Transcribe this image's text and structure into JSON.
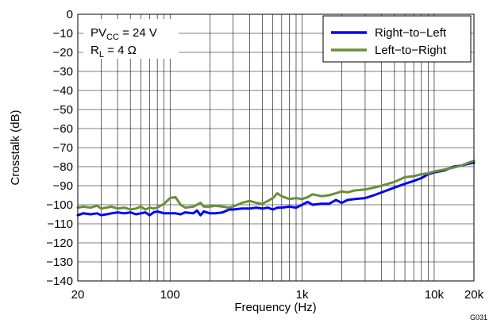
{
  "chart_data": {
    "type": "line",
    "x_scale": "log",
    "xlim": [
      20,
      20000
    ],
    "ylim": [
      -140,
      0
    ],
    "xlabel": "Frequency (Hz)",
    "ylabel": "Crosstalk (dB)",
    "x_ticks": [
      {
        "value": 20,
        "label": "20"
      },
      {
        "value": 100,
        "label": "100"
      },
      {
        "value": 1000,
        "label": "1k"
      },
      {
        "value": 10000,
        "label": "10k"
      },
      {
        "value": 20000,
        "label": "20k"
      }
    ],
    "y_ticks": [
      0,
      -10,
      -20,
      -30,
      -40,
      -50,
      -60,
      -70,
      -80,
      -90,
      -100,
      -110,
      -120,
      -130,
      -140
    ],
    "y_tick_labels": [
      "0",
      "−10",
      "−20",
      "−30",
      "−40",
      "−50",
      "−60",
      "−70",
      "−80",
      "−90",
      "−100",
      "−110",
      "−120",
      "−130",
      "−140"
    ],
    "grid": true,
    "legend_position": "top-right",
    "annotations": [
      {
        "main": "PV",
        "sub": "CC",
        "rest": " = 24 V"
      },
      {
        "main": "R",
        "sub": "L",
        "rest": " = 4 Ω"
      }
    ],
    "figure_id": "G031",
    "series": [
      {
        "name": "Right−to−Left",
        "color": "#0000ff",
        "x": [
          20,
          22,
          25,
          28,
          30,
          33,
          36,
          40,
          45,
          50,
          55,
          60,
          65,
          70,
          75,
          80,
          90,
          100,
          110,
          120,
          130,
          150,
          160,
          170,
          180,
          200,
          220,
          250,
          280,
          300,
          350,
          400,
          450,
          500,
          550,
          600,
          650,
          700,
          800,
          900,
          1000,
          1100,
          1200,
          1400,
          1600,
          1800,
          2000,
          2200,
          2500,
          3000,
          3500,
          4000,
          5000,
          6000,
          7000,
          8000,
          9000,
          10000,
          12000,
          14000,
          16000,
          18000,
          20000
        ],
        "y": [
          -105.5,
          -104.5,
          -105,
          -104.5,
          -105.5,
          -105,
          -104.5,
          -104,
          -104.5,
          -104,
          -105,
          -104.5,
          -104,
          -105.5,
          -104,
          -103.5,
          -104.5,
          -104.5,
          -104.5,
          -105,
          -104,
          -104.5,
          -103,
          -105.5,
          -103.5,
          -104.5,
          -104.5,
          -104,
          -102.5,
          -102.5,
          -102,
          -102,
          -101.5,
          -102,
          -101.5,
          -102.5,
          -101.5,
          -101.5,
          -101,
          -101.5,
          -100,
          -98.5,
          -100,
          -99.5,
          -99.5,
          -97.5,
          -99,
          -97.5,
          -97,
          -96.5,
          -95,
          -93.5,
          -91,
          -89,
          -87.5,
          -86,
          -84,
          -83,
          -82,
          -80,
          -79.5,
          -78.5,
          -78
        ]
      },
      {
        "name": "Left−to−Right",
        "color": "#6b8e3a",
        "x": [
          20,
          22,
          25,
          28,
          30,
          33,
          36,
          40,
          45,
          50,
          55,
          60,
          65,
          70,
          75,
          80,
          90,
          100,
          110,
          120,
          130,
          150,
          160,
          170,
          180,
          200,
          220,
          250,
          280,
          300,
          350,
          400,
          450,
          500,
          550,
          600,
          650,
          700,
          800,
          900,
          1000,
          1100,
          1200,
          1400,
          1600,
          1800,
          2000,
          2200,
          2500,
          3000,
          3500,
          4000,
          5000,
          6000,
          7000,
          8000,
          9000,
          10000,
          12000,
          14000,
          16000,
          18000,
          20000
        ],
        "y": [
          -101.5,
          -101,
          -101.5,
          -100.5,
          -102,
          -101.5,
          -101,
          -102,
          -101.5,
          -102.5,
          -102,
          -101,
          -102.5,
          -101.5,
          -102,
          -101.5,
          -99.5,
          -96.5,
          -96,
          -100,
          -101.5,
          -101,
          -100,
          -99,
          -101,
          -101,
          -100.5,
          -101,
          -101.5,
          -101,
          -99,
          -98,
          -99,
          -99.5,
          -98,
          -96.5,
          -94,
          -95.5,
          -97,
          -96.5,
          -97,
          -96,
          -94.5,
          -95.5,
          -95,
          -94,
          -93,
          -93.5,
          -92.5,
          -92,
          -91,
          -90,
          -88,
          -85.5,
          -85,
          -84,
          -83.5,
          -82.5,
          -81.5,
          -80.5,
          -79.5,
          -78,
          -77
        ]
      }
    ]
  }
}
